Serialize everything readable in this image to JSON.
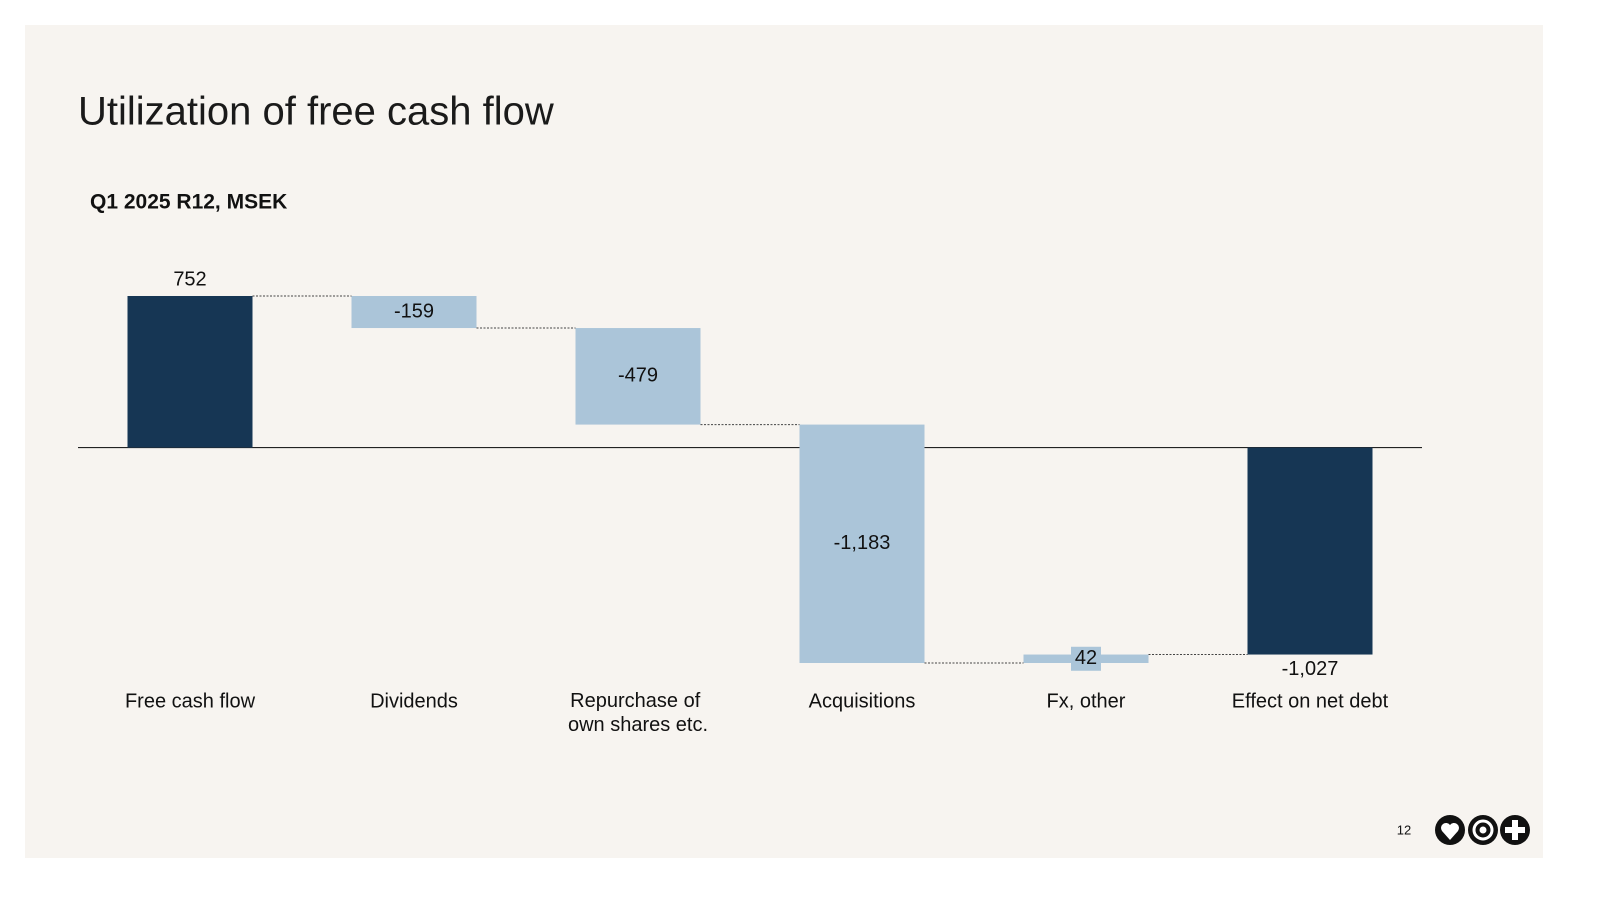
{
  "chart_data": {
    "type": "waterfall",
    "title": "Utilization of free cash flow",
    "subtitle": "Q1 2025 R12, MSEK",
    "categories": [
      "Free cash flow",
      "Dividends",
      "Repurchase of own shares etc.",
      "Acquisitions",
      "Fx, other",
      "Effect on net debt"
    ],
    "values": [
      752,
      -159,
      -479,
      -1183,
      42,
      -1027
    ],
    "value_labels": [
      "752",
      "-159",
      "-479",
      "-1,183",
      "42",
      "-1,027"
    ],
    "totals": [
      0,
      5
    ],
    "total_color": "#163654",
    "change_color": "#abc5d9"
  },
  "page_number": "12"
}
